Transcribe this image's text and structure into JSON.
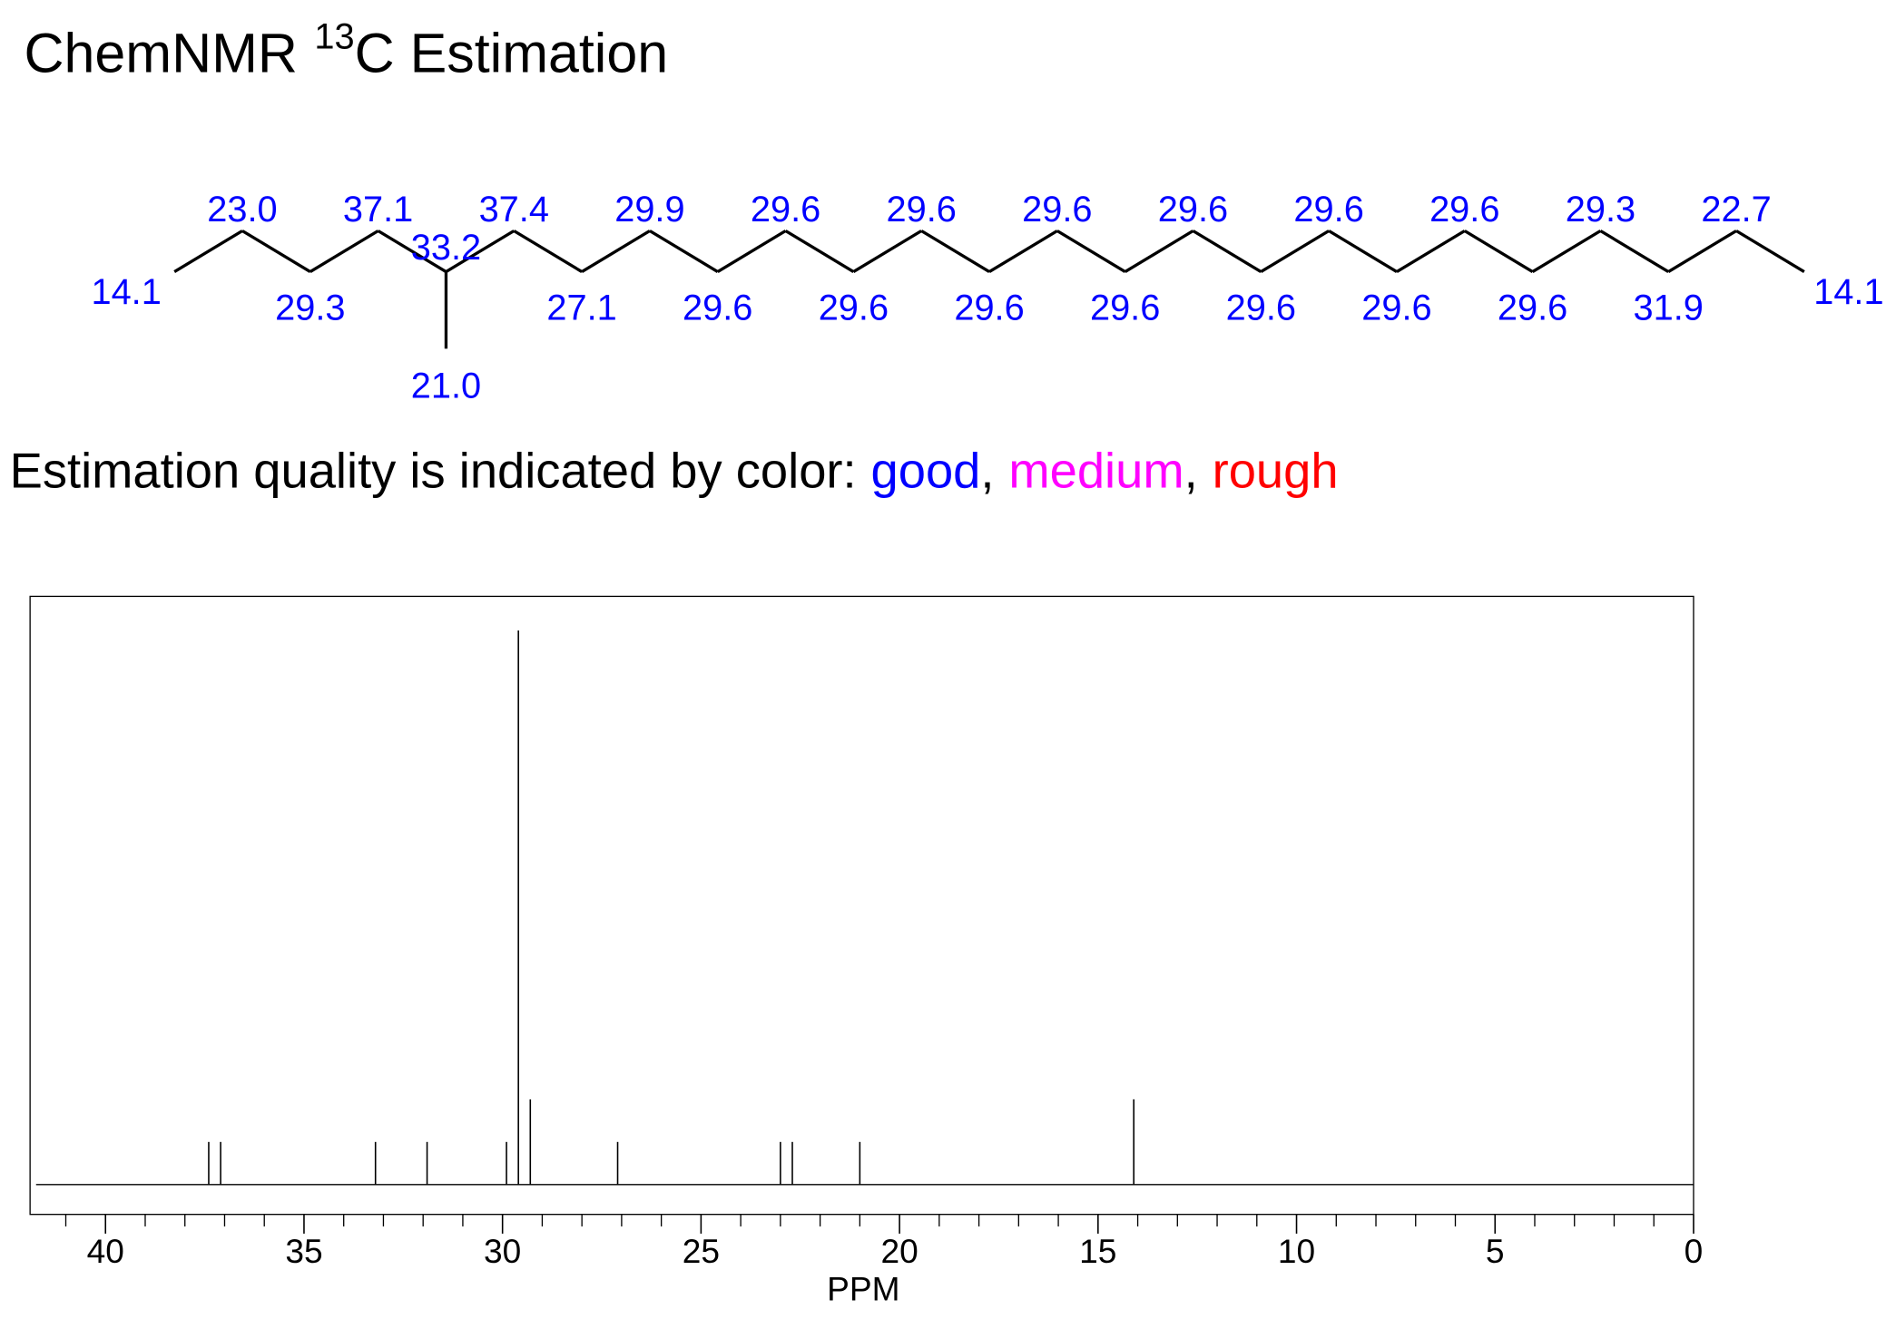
{
  "header": {
    "title": "ChemNMR",
    "isotope": "13",
    "title_rest": "C Estimation"
  },
  "structure": {
    "color": "#0000ff",
    "chain_shifts": [
      "14.1",
      "23.0",
      "29.3",
      "37.1",
      "33.2",
      "37.4",
      "27.1",
      "29.9",
      "29.6",
      "29.6",
      "29.6",
      "29.6",
      "29.6",
      "29.6",
      "29.6",
      "29.6",
      "29.6",
      "29.6",
      "29.6",
      "29.6",
      "29.6",
      "29.3",
      "31.9",
      "22.7",
      "14.1"
    ],
    "branch_shift": "21.0"
  },
  "quality_note": {
    "text": "Estimation quality is indicated by color:",
    "separator": ",",
    "items": [
      {
        "label": "good",
        "color": "#0000ff"
      },
      {
        "label": "medium",
        "color": "#ff00ff"
      },
      {
        "label": "rough",
        "color": "#ff0000"
      }
    ]
  },
  "chart_data": {
    "type": "stem",
    "x_label": "PPM",
    "color": "#000000",
    "x": [
      37.4,
      37.1,
      33.2,
      31.9,
      29.9,
      29.6,
      29.3,
      27.1,
      23.0,
      22.7,
      21.0,
      14.1
    ],
    "values": [
      1,
      1,
      1,
      1,
      1,
      13,
      2,
      1,
      1,
      1,
      1,
      2
    ],
    "xlim": [
      41.9,
      0
    ],
    "ylim": [
      -0.7,
      13.8
    ],
    "xticks": [
      40,
      35,
      30,
      25,
      20,
      15,
      10,
      5,
      0
    ],
    "xminor_ticks": [
      41,
      39,
      38,
      37,
      36,
      34,
      33,
      32,
      31,
      29,
      28,
      27,
      26,
      24,
      23,
      22,
      21,
      19,
      18,
      17,
      16,
      14,
      13,
      12,
      11,
      9,
      8,
      7,
      6,
      4,
      3,
      2,
      1
    ]
  }
}
